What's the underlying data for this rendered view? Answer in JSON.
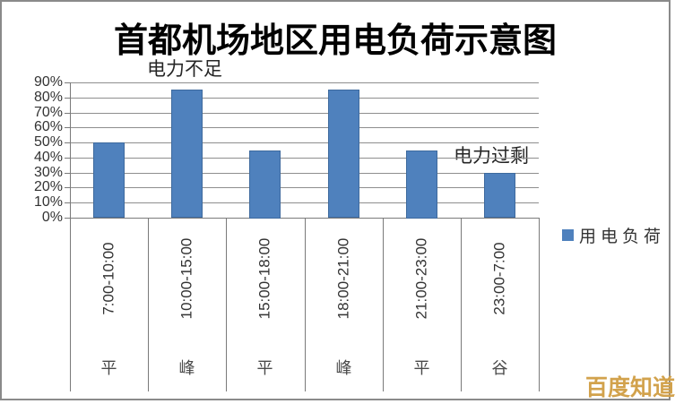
{
  "title": "首都机场地区用电负荷示意图",
  "annotations": {
    "shortage": "电力不足",
    "surplus": "电力过剩"
  },
  "legend": {
    "label": "用电负荷",
    "color": "#4F81BD"
  },
  "watermark": "百度知道",
  "colors": {
    "bar": "#4F81BD",
    "bar_border": "#3E6A9E",
    "gridline": "#8e8e8e",
    "axis": "#7a7a7a",
    "frame_border": "#8a8a8a",
    "watermark": "#d2a24c",
    "axis_text": "#333333"
  },
  "chart_data": {
    "type": "bar",
    "title": "首都机场地区用电负荷示意图",
    "series_name": "用电负荷",
    "categories": [
      "7:00-10:00",
      "10:00-15:00",
      "15:00-18:00",
      "18:00-21:00",
      "21:00-23:00",
      "23:00-7:00"
    ],
    "group_labels": [
      "平",
      "峰",
      "平",
      "峰",
      "平",
      "谷"
    ],
    "values": [
      50,
      85,
      45,
      85,
      45,
      30
    ],
    "unit": "%",
    "ylim": [
      0,
      90
    ],
    "ytick_step": 10,
    "ytick_values": [
      0,
      10,
      20,
      30,
      40,
      50,
      60,
      70,
      80,
      90
    ],
    "ytick_labels": [
      "0%",
      "10%",
      "20%",
      "30%",
      "40%",
      "50%",
      "60%",
      "70%",
      "80%",
      "90%"
    ],
    "grid": true,
    "legend_position": "right",
    "bar_color": "#4F81BD",
    "annotations": [
      {
        "text": "电力不足",
        "near_category": "10:00-15:00",
        "placement": "above peak bars"
      },
      {
        "text": "电力过剩",
        "near_category": "23:00-7:00",
        "placement": "above valley bar"
      }
    ]
  }
}
